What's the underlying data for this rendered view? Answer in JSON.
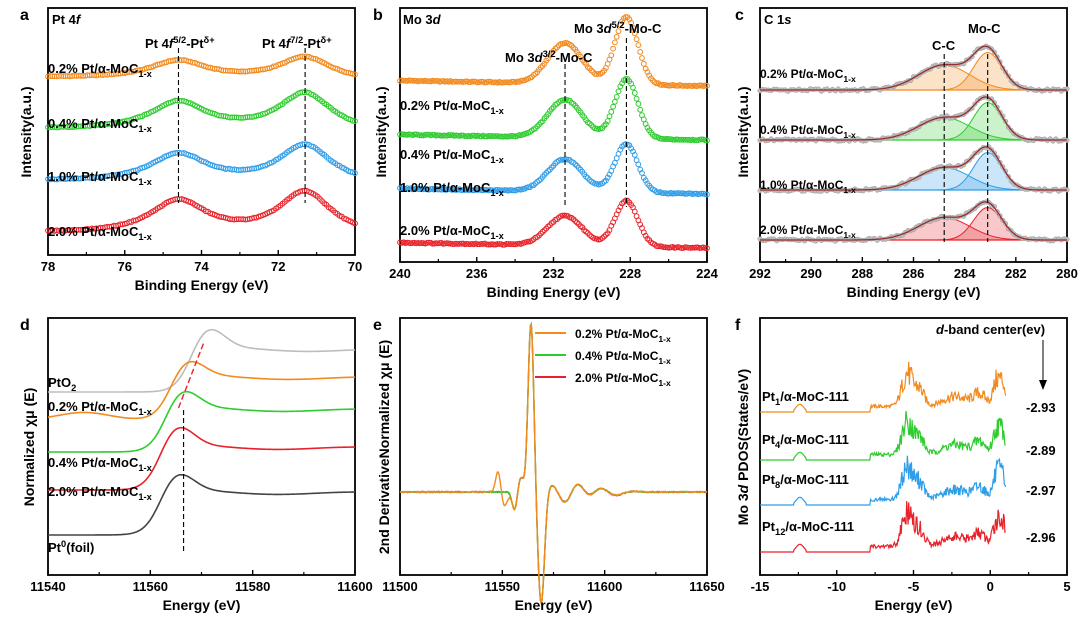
{
  "colors": {
    "orange": "#f28a1e",
    "green": "#2ecc2e",
    "blue": "#2f9de8",
    "red": "#e8222a",
    "gray": "#bdbdbd",
    "dark": "#444444",
    "axis": "#000000"
  },
  "chart_data": [
    {
      "panel": "a",
      "type": "scatter",
      "title": "Pt 4f",
      "xlabel": "Binding Energy (eV)",
      "ylabel": "Intensity(a.u.)",
      "xlim": [
        78,
        70
      ],
      "x_reversed": true,
      "xticks": [
        78,
        76,
        74,
        72,
        70
      ],
      "peaks": [
        74.6,
        71.3
      ],
      "annotations": [
        "Pt 4f5/2-Ptδ+",
        "Pt 4f7/2-Ptδ+"
      ],
      "series": [
        {
          "name": "0.2% Pt/α-MoC1-x",
          "color": "orange",
          "offset": 3.0,
          "amps": [
            0.35,
            0.45
          ],
          "baseline_tilt": 0.08
        },
        {
          "name": "0.4% Pt/α-MoC1-x",
          "color": "green",
          "offset": 2.0,
          "amps": [
            0.55,
            0.75
          ],
          "baseline_tilt": 0.08
        },
        {
          "name": "1.0% Pt/α-MoC1-x",
          "color": "blue",
          "offset": 1.0,
          "amps": [
            0.55,
            0.75
          ],
          "baseline_tilt": 0.08
        },
        {
          "name": "2.0% Pt/α-MoC1-x",
          "color": "red",
          "offset": 0.0,
          "amps": [
            0.65,
            0.85
          ],
          "baseline_tilt": 0.08
        }
      ]
    },
    {
      "panel": "b",
      "type": "scatter",
      "title": "Mo 3d",
      "xlabel": "Binding Energy (eV)",
      "ylabel": "Intensity(a.u.)",
      "xlim": [
        240,
        224
      ],
      "x_reversed": true,
      "xticks": [
        240,
        236,
        232,
        228,
        224
      ],
      "peaks": [
        231.4,
        228.2
      ],
      "annotations": [
        "Mo 3d3/2-Mo-C",
        "Mo 3d5/2-Mo-C"
      ],
      "series": [
        {
          "name": "0.2% Pt/α-MoC1-x",
          "color": "orange",
          "offset": 3.0,
          "amps": [
            0.75,
            1.25
          ],
          "baseline_tilt": 0.1
        },
        {
          "name": "0.4% Pt/α-MoC1-x",
          "color": "green",
          "offset": 2.0,
          "amps": [
            0.7,
            1.1
          ],
          "baseline_tilt": 0.1
        },
        {
          "name": "1.0% Pt/α-MoC1-x",
          "color": "blue",
          "offset": 1.0,
          "amps": [
            0.6,
            0.9
          ],
          "baseline_tilt": 0.1
        },
        {
          "name": "2.0% Pt/α-MoC1-x",
          "color": "red",
          "offset": 0.0,
          "amps": [
            0.55,
            0.85
          ],
          "baseline_tilt": 0.1
        }
      ]
    },
    {
      "panel": "c",
      "type": "scatter",
      "title": "C 1s",
      "xlabel": "Binding Energy (eV)",
      "ylabel": "Intensity(a.u.)",
      "xlim": [
        292,
        280
      ],
      "x_reversed": true,
      "xticks": [
        292,
        290,
        288,
        286,
        284,
        282,
        280
      ],
      "peaks": [
        284.8,
        283.1
      ],
      "annotations": [
        "C-C",
        "Mo-C"
      ],
      "series": [
        {
          "name": "0.2% Pt/α-MoC1-x",
          "color": "orange",
          "offset": 3.0,
          "amps": [
            0.5,
            0.75
          ]
        },
        {
          "name": "0.4% Pt/α-MoC1-x",
          "color": "green",
          "offset": 2.0,
          "amps": [
            0.45,
            0.75
          ]
        },
        {
          "name": "1.0% Pt/α-MoC1-x",
          "color": "blue",
          "offset": 1.0,
          "amps": [
            0.45,
            0.75
          ]
        },
        {
          "name": "2.0% Pt/α-MoC1-x",
          "color": "red",
          "offset": 0.0,
          "amps": [
            0.45,
            0.65
          ]
        }
      ]
    },
    {
      "panel": "d",
      "type": "line",
      "title": "",
      "xlabel": "Energy (eV)",
      "ylabel": "Normalized χμ (E)",
      "xlim": [
        11540,
        11600
      ],
      "xticks": [
        11540,
        11560,
        11580,
        11600
      ],
      "edge_lines": [
        11566.5,
        11570
      ],
      "series": [
        {
          "name": "PtO2",
          "color": "gray",
          "offset": 4.0,
          "edge": 11568,
          "white_line": 0.55
        },
        {
          "name": "0.2% Pt/α-MoC1-x",
          "color": "orange",
          "offset": 3.0,
          "edge": 11564,
          "white_line": 0.45
        },
        {
          "name": "0.4% Pt/α-MoC1-x",
          "color": "green",
          "offset": 2.0,
          "edge": 11563,
          "white_line": 0.5
        },
        {
          "name": "2.0% Pt/α-MoC1-x",
          "color": "red",
          "offset": 1.0,
          "edge": 11562,
          "white_line": 0.55
        },
        {
          "name": "Pt0(foil)",
          "color": "dark",
          "offset": 0.0,
          "edge": 11562,
          "white_line": 0.5
        }
      ]
    },
    {
      "panel": "e",
      "type": "line",
      "title": "",
      "xlabel": "Energy (eV)",
      "ylabel": "2nd DerivativeNormalized χμ (E)",
      "xlim": [
        11500,
        11650
      ],
      "xticks": [
        11500,
        11550,
        11600,
        11650
      ],
      "series": [
        {
          "name": "0.2% Pt/α-MoC1-x",
          "color": "orange"
        },
        {
          "name": "0.4% Pt/α-MoC1-x",
          "color": "green"
        },
        {
          "name": "2.0% Pt/α-MoC1-x",
          "color": "red"
        }
      ]
    },
    {
      "panel": "f",
      "type": "line",
      "title": "",
      "xlabel": "Energy (eV)",
      "ylabel": "Mo 3d PDOS(States/eV)",
      "xlim": [
        -15,
        5
      ],
      "xticks": [
        -15,
        -10,
        -5,
        0,
        5
      ],
      "legend_title": "d-band center(ev)",
      "series": [
        {
          "name": "Pt1/α-MoC-111",
          "color": "orange",
          "offset": 3.0,
          "d_band_center": "-2.93"
        },
        {
          "name": "Pt4/α-MoC-111",
          "color": "green",
          "offset": 2.0,
          "d_band_center": "-2.89"
        },
        {
          "name": "Pt8/α-MoC-111",
          "color": "blue",
          "offset": 1.0,
          "d_band_center": "-2.97"
        },
        {
          "name": "Pt12/α-MoC-111",
          "color": "red",
          "offset": 0.0,
          "d_band_center": "-2.96"
        }
      ]
    }
  ],
  "text": {
    "labels": [
      "a",
      "b",
      "c",
      "d",
      "e",
      "f"
    ],
    "a_title_main": "Pt 4",
    "a_title_it": "f",
    "b_title_main": "Mo 3",
    "b_title_it": "d",
    "c_title_main": "C 1",
    "c_title_it": "s",
    "a_ann1": [
      "Pt 4",
      "f",
      "5/2",
      "-Pt",
      "δ+"
    ],
    "a_ann2": [
      "Pt 4",
      "f",
      "7/2",
      "-Pt",
      "δ+"
    ],
    "b_ann1": [
      "Mo 3",
      "d",
      "3/2",
      "-Mo-C"
    ],
    "b_ann2": [
      "Mo 3",
      "d",
      "5/2",
      "-Mo-C"
    ],
    "c_ann1": "C-C",
    "c_ann2": "Mo-C",
    "sample_main": [
      "0.2% Pt/α-MoC",
      "0.4% Pt/α-MoC",
      "1.0% Pt/α-MoC",
      "2.0% Pt/α-MoC"
    ],
    "sample_sub": "1-x",
    "d_labels": {
      "pto2_main": "PtO",
      "pto2_sub": "2",
      "foil_main": "Pt",
      "foil_sup": "0",
      "foil_rest": "(foil)"
    },
    "e_legend": [
      "0.2% Pt/α-MoC",
      "0.4% Pt/α-MoC",
      "2.0% Pt/α-MoC"
    ],
    "f_labels": [
      [
        "Pt",
        "1",
        "/α-MoC-111"
      ],
      [
        "Pt",
        "4",
        "/α-MoC-111"
      ],
      [
        "Pt",
        "8",
        "/α-MoC-111"
      ],
      [
        "Pt",
        "12",
        "/α-MoC-111"
      ]
    ],
    "f_values": [
      "-2.93",
      "-2.89",
      "-2.97",
      "-2.96"
    ],
    "f_legend_main": "d",
    "f_legend_rest": "-band center(ev)",
    "ylabel_xps": "Intensity(a.u.)",
    "xlabel_be": "Binding Energy (eV)",
    "xlabel_e": "Energy (eV)",
    "ylabel_d": "Normalized χμ (E)",
    "ylabel_e": "2nd DerivativeNormalized χμ (E)",
    "ylabel_f_a": "Mo 3",
    "ylabel_f_b": "d",
    "ylabel_f_c": " PDOS(States/eV)"
  }
}
